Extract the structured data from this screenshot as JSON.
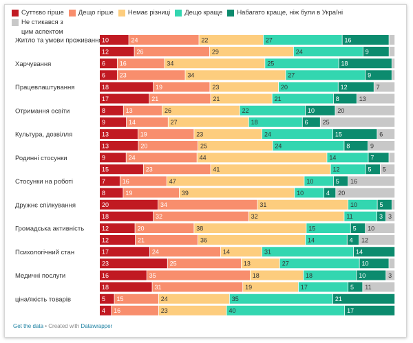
{
  "chart_data": {
    "type": "bar",
    "orientation": "horizontal-stacked",
    "legend_position": "top",
    "series": [
      {
        "name": "Суттєво гірше",
        "color": "#c11a22"
      },
      {
        "name": "Дещо гірше",
        "color": "#f88e6d"
      },
      {
        "name": "Немає різниці",
        "color": "#fdcd7e"
      },
      {
        "name": "Дещо краще",
        "color": "#33d6b0"
      },
      {
        "name": "Набагато краще, ніж були в Україні",
        "color": "#0c8b6e"
      },
      {
        "name": "Не стикався з цим аспектом",
        "color": "#c8c8c8"
      }
    ],
    "categories": [
      "Житло та умови проживання",
      "Харчування",
      "Працевлаштування",
      "Отримання освіти",
      "Культура, дозвілля",
      "Родинні стосунки",
      "Стосунки на роботі",
      "Дружнє спілкування",
      "Громадська активність",
      "Психологічний стан",
      "Медичні послуги",
      "ціна/якість товарів"
    ],
    "bars": [
      [
        [
          10,
          24,
          22,
          27,
          16,
          2
        ],
        [
          12,
          26,
          29,
          24,
          9,
          2
        ]
      ],
      [
        [
          6,
          16,
          34,
          25,
          18,
          1
        ],
        [
          6,
          23,
          34,
          27,
          9,
          1
        ]
      ],
      [
        [
          18,
          19,
          23,
          20,
          12,
          7
        ],
        [
          17,
          21,
          21,
          21,
          8,
          13
        ]
      ],
      [
        [
          8,
          13,
          26,
          22,
          10,
          20
        ],
        [
          9,
          14,
          27,
          18,
          6,
          25
        ]
      ],
      [
        [
          13,
          19,
          23,
          24,
          15,
          6
        ],
        [
          13,
          20,
          25,
          24,
          8,
          9
        ]
      ],
      [
        [
          9,
          24,
          44,
          14,
          7,
          2
        ],
        [
          15,
          23,
          41,
          12,
          5,
          5
        ]
      ],
      [
        [
          7,
          16,
          47,
          10,
          5,
          16
        ],
        [
          8,
          19,
          39,
          10,
          4,
          20
        ]
      ],
      [
        [
          20,
          34,
          31,
          10,
          5,
          1
        ],
        [
          18,
          32,
          32,
          11,
          3,
          3
        ]
      ],
      [
        [
          12,
          20,
          38,
          15,
          5,
          10
        ],
        [
          12,
          21,
          36,
          14,
          4,
          12
        ]
      ],
      [
        [
          17,
          24,
          14,
          31,
          14,
          0
        ],
        [
          23,
          25,
          13,
          27,
          10,
          2
        ]
      ],
      [
        [
          16,
          35,
          18,
          18,
          10,
          3
        ],
        [
          18,
          31,
          19,
          17,
          5,
          11
        ]
      ],
      [
        [
          5,
          15,
          24,
          35,
          21,
          0
        ],
        [
          4,
          16,
          23,
          40,
          17,
          0
        ]
      ]
    ],
    "hidden_labels": [
      "0.0.5",
      "0.1.5",
      "1.0.5",
      "1.1.5",
      "5.0.5",
      "7.0.5",
      "9.1.5",
      "11.0.5",
      "11.1.5"
    ]
  },
  "footer": {
    "link": "Get the data",
    "text": " • Created with ",
    "brand": "Datawrapper"
  }
}
